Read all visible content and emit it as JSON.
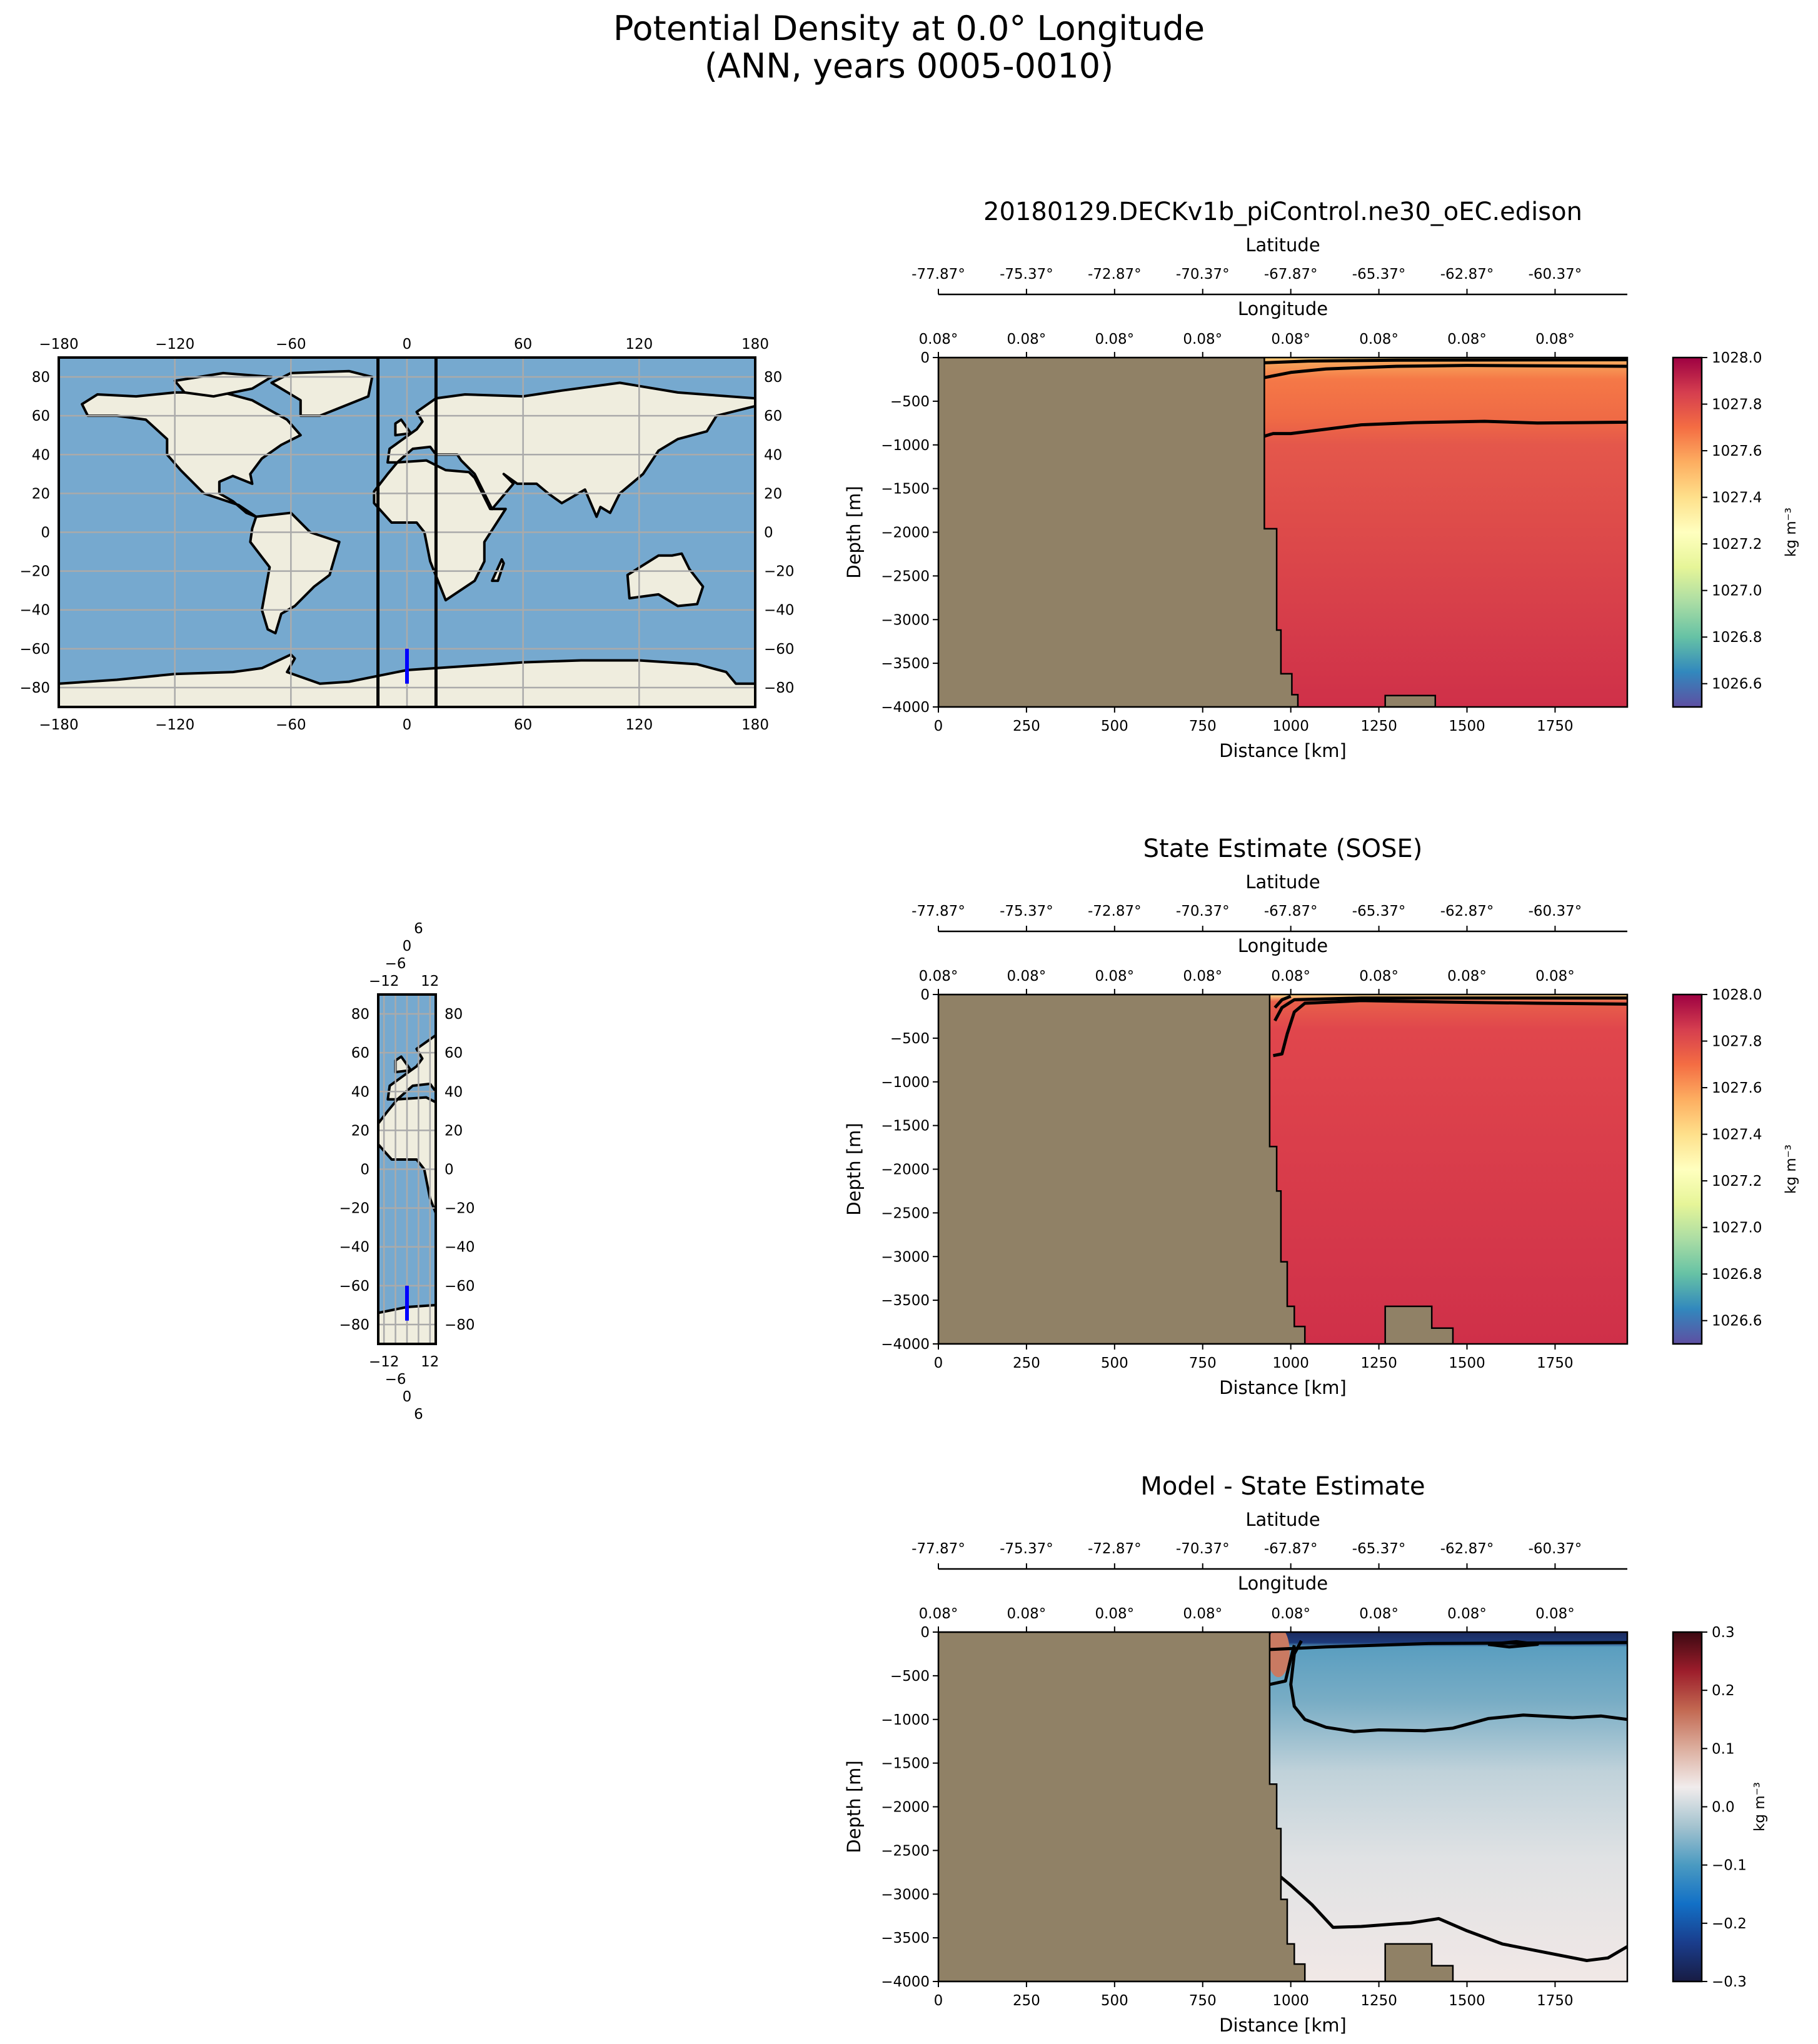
{
  "title": {
    "line1": "Potential Density at 0.0° Longitude",
    "line2": "(ANN, years 0005-0010)"
  },
  "chart_data": [
    {
      "type": "map",
      "name": "overview-map",
      "xlim": [
        -180,
        180
      ],
      "ylim": [
        -90,
        90
      ],
      "xticks": [
        "−180",
        "−120",
        "−60",
        "0",
        "60",
        "120",
        "180"
      ],
      "xtick_values": [
        -180,
        -120,
        -60,
        0,
        60,
        120,
        180
      ],
      "yticks": [
        "−80",
        "−60",
        "−40",
        "−20",
        "0",
        "20",
        "40",
        "60",
        "80"
      ],
      "ytick_values": [
        -80,
        -60,
        -40,
        -20,
        0,
        20,
        40,
        60,
        80
      ],
      "bounds_lon": [
        -15,
        15
      ],
      "transect": {
        "lon": 0,
        "lat": [
          -78,
          -60
        ],
        "color": "#0000ff"
      }
    },
    {
      "type": "map",
      "name": "inset-map",
      "xlim": [
        -15,
        15
      ],
      "ylim": [
        -90,
        90
      ],
      "xticks": [
        "−12",
        "−6",
        "0",
        "6",
        "12"
      ],
      "xtick_values": [
        -12,
        -6,
        0,
        6,
        12
      ],
      "yticks": [
        "−80",
        "−60",
        "−40",
        "−20",
        "0",
        "20",
        "40",
        "60",
        "80"
      ],
      "ytick_values": [
        -80,
        -60,
        -40,
        -20,
        0,
        20,
        40,
        60,
        80
      ],
      "transect": {
        "lon": 0,
        "lat": [
          -78,
          -60
        ],
        "color": "#0000ff"
      }
    },
    {
      "type": "heatmap",
      "name": "model-section",
      "title": "20180129.DECKv1b_piControl.ne30_oEC.edison",
      "xlabel": "Distance [km]",
      "ylabel": "Depth [m]",
      "xlim": [
        0,
        1955
      ],
      "ylim": [
        -4000,
        0
      ],
      "xticks": [
        0,
        250,
        500,
        750,
        1000,
        1250,
        1500,
        1750
      ],
      "yticks": [
        0,
        -500,
        -1000,
        -1500,
        -2000,
        -2500,
        -3000,
        -3500,
        -4000
      ],
      "lat_label": "Latitude",
      "lat_ticks": [
        "-77.87°",
        "-75.37°",
        "-72.87°",
        "-70.37°",
        "-67.87°",
        "-65.37°",
        "-62.87°",
        "-60.37°"
      ],
      "lon_label": "Longitude",
      "lon_ticks": [
        "0.08°",
        "0.08°",
        "0.08°",
        "0.08°",
        "0.08°",
        "0.08°",
        "0.08°",
        "0.08°"
      ],
      "colorbar": {
        "label": "kg m⁻³",
        "range": [
          1026.5,
          1028.0
        ],
        "ticks": [
          "1026.6",
          "1026.8",
          "1027.0",
          "1027.2",
          "1027.4",
          "1027.6",
          "1027.8",
          "1028.0"
        ],
        "tick_values": [
          1026.6,
          1026.8,
          1027.0,
          1027.2,
          1027.4,
          1027.6,
          1027.8,
          1028.0
        ],
        "cmap": "Spectral_r"
      },
      "field_stops": [
        {
          "depth": 0,
          "color": "#fdd57e"
        },
        {
          "depth": -60,
          "color": "#f7a35a"
        },
        {
          "depth": -250,
          "color": "#f57847"
        },
        {
          "depth": -700,
          "color": "#ef6a45"
        },
        {
          "depth": -1000,
          "color": "#e4574b"
        },
        {
          "depth": -4000,
          "color": "#cf3049"
        }
      ],
      "bathymetry": [
        [
          0,
          0
        ],
        [
          925,
          0
        ],
        [
          925,
          -1960
        ],
        [
          960,
          -1960
        ],
        [
          960,
          -3120
        ],
        [
          972,
          -3120
        ],
        [
          972,
          -3620
        ],
        [
          1003,
          -3620
        ],
        [
          1003,
          -3860
        ],
        [
          1020,
          -3860
        ],
        [
          1020,
          -4000
        ],
        [
          0,
          -4000
        ]
      ],
      "seamount": [
        [
          1268,
          -4000
        ],
        [
          1268,
          -3870
        ],
        [
          1410,
          -3870
        ],
        [
          1410,
          -4000
        ]
      ],
      "contours": [
        [
          [
            925,
            -900
          ],
          [
            950,
            -870
          ],
          [
            1000,
            -870
          ],
          [
            1100,
            -820
          ],
          [
            1200,
            -770
          ],
          [
            1350,
            -745
          ],
          [
            1550,
            -730
          ],
          [
            1700,
            -750
          ],
          [
            1955,
            -740
          ]
        ],
        [
          [
            925,
            -230
          ],
          [
            1000,
            -170
          ],
          [
            1100,
            -130
          ],
          [
            1300,
            -100
          ],
          [
            1500,
            -90
          ],
          [
            1955,
            -100
          ]
        ],
        [
          [
            925,
            -60
          ],
          [
            1050,
            -40
          ],
          [
            1300,
            -30
          ],
          [
            1955,
            -25
          ]
        ]
      ]
    },
    {
      "type": "heatmap",
      "name": "sose-section",
      "title": "State Estimate (SOSE)",
      "xlabel": "Distance [km]",
      "ylabel": "Depth [m]",
      "xlim": [
        0,
        1955
      ],
      "ylim": [
        -4000,
        0
      ],
      "xticks": [
        0,
        250,
        500,
        750,
        1000,
        1250,
        1500,
        1750
      ],
      "yticks": [
        0,
        -500,
        -1000,
        -1500,
        -2000,
        -2500,
        -3000,
        -3500,
        -4000
      ],
      "lat_label": "Latitude",
      "lat_ticks": [
        "-77.87°",
        "-75.37°",
        "-72.87°",
        "-70.37°",
        "-67.87°",
        "-65.37°",
        "-62.87°",
        "-60.37°"
      ],
      "lon_label": "Longitude",
      "lon_ticks": [
        "0.08°",
        "0.08°",
        "0.08°",
        "0.08°",
        "0.08°",
        "0.08°",
        "0.08°",
        "0.08°"
      ],
      "colorbar": {
        "label": "kg m⁻³",
        "range": [
          1026.5,
          1028.0
        ],
        "ticks": [
          "1026.6",
          "1026.8",
          "1027.0",
          "1027.2",
          "1027.4",
          "1027.6",
          "1027.8",
          "1028.0"
        ],
        "tick_values": [
          1026.6,
          1026.8,
          1027.0,
          1027.2,
          1027.4,
          1027.6,
          1027.8,
          1028.0
        ],
        "cmap": "Spectral_r"
      },
      "field_stops": [
        {
          "depth": 0,
          "color": "#fee08b"
        },
        {
          "depth": -80,
          "color": "#e8604a"
        },
        {
          "depth": -400,
          "color": "#e0464c"
        },
        {
          "depth": -4000,
          "color": "#cf3049"
        }
      ],
      "bathymetry": [
        [
          0,
          0
        ],
        [
          940,
          0
        ],
        [
          940,
          -1740
        ],
        [
          960,
          -1740
        ],
        [
          960,
          -2250
        ],
        [
          972,
          -2250
        ],
        [
          972,
          -3060
        ],
        [
          990,
          -3060
        ],
        [
          990,
          -3570
        ],
        [
          1010,
          -3570
        ],
        [
          1010,
          -3800
        ],
        [
          1040,
          -3800
        ],
        [
          1040,
          -4000
        ],
        [
          0,
          -4000
        ]
      ],
      "seamount": [
        [
          1268,
          -4000
        ],
        [
          1268,
          -3570
        ],
        [
          1400,
          -3570
        ],
        [
          1400,
          -3820
        ],
        [
          1460,
          -3820
        ],
        [
          1460,
          -4000
        ]
      ],
      "contours": [
        [
          [
            950,
            -700
          ],
          [
            975,
            -680
          ],
          [
            990,
            -450
          ],
          [
            1010,
            -200
          ],
          [
            1040,
            -100
          ],
          [
            1200,
            -70
          ],
          [
            1500,
            -90
          ],
          [
            1700,
            -100
          ],
          [
            1955,
            -110
          ]
        ],
        [
          [
            955,
            -300
          ],
          [
            975,
            -150
          ],
          [
            1010,
            -60
          ],
          [
            1200,
            -40
          ],
          [
            1955,
            -40
          ]
        ],
        [
          [
            955,
            -150
          ],
          [
            975,
            -60
          ],
          [
            1000,
            -20
          ]
        ]
      ]
    },
    {
      "type": "heatmap",
      "name": "difference-section",
      "title": "Model - State Estimate",
      "xlabel": "Distance [km]",
      "ylabel": "Depth [m]",
      "xlim": [
        0,
        1955
      ],
      "ylim": [
        -4000,
        0
      ],
      "xticks": [
        0,
        250,
        500,
        750,
        1000,
        1250,
        1500,
        1750
      ],
      "yticks": [
        0,
        -500,
        -1000,
        -1500,
        -2000,
        -2500,
        -3000,
        -3500,
        -4000
      ],
      "lat_label": "Latitude",
      "lat_ticks": [
        "-77.87°",
        "-75.37°",
        "-72.87°",
        "-70.37°",
        "-67.87°",
        "-65.37°",
        "-62.87°",
        "-60.37°"
      ],
      "lon_label": "Longitude",
      "lon_ticks": [
        "0.08°",
        "0.08°",
        "0.08°",
        "0.08°",
        "0.08°",
        "0.08°",
        "0.08°",
        "0.08°"
      ],
      "colorbar": {
        "label": "kg m⁻³",
        "range": [
          -0.3,
          0.3
        ],
        "ticks": [
          "−0.3",
          "−0.2",
          "−0.1",
          "0.0",
          "0.1",
          "0.2",
          "0.3"
        ],
        "tick_values": [
          -0.3,
          -0.2,
          -0.1,
          0.0,
          0.1,
          0.2,
          0.3
        ],
        "cmap": "balance"
      },
      "field_stops": [
        {
          "depth": 0,
          "color": "#1c2a5e"
        },
        {
          "depth": -120,
          "color": "#1d3a7a"
        },
        {
          "depth": -170,
          "color": "#5a9ec0"
        },
        {
          "depth": -800,
          "color": "#79adc5"
        },
        {
          "depth": -1600,
          "color": "#c0d2da"
        },
        {
          "depth": -2600,
          "color": "#e0e2e4"
        },
        {
          "depth": -4000,
          "color": "#f1e8e6"
        }
      ],
      "bathymetry": [
        [
          0,
          0
        ],
        [
          940,
          0
        ],
        [
          940,
          -1740
        ],
        [
          960,
          -1740
        ],
        [
          960,
          -2250
        ],
        [
          972,
          -2250
        ],
        [
          972,
          -3060
        ],
        [
          990,
          -3060
        ],
        [
          990,
          -3570
        ],
        [
          1010,
          -3570
        ],
        [
          1010,
          -3800
        ],
        [
          1040,
          -3800
        ],
        [
          1040,
          -4000
        ],
        [
          0,
          -4000
        ]
      ],
      "seamount": [
        [
          1268,
          -4000
        ],
        [
          1268,
          -3570
        ],
        [
          1400,
          -3570
        ],
        [
          1400,
          -3820
        ],
        [
          1460,
          -3820
        ],
        [
          1460,
          -4000
        ]
      ],
      "contours": [
        [
          [
            1030,
            -100
          ],
          [
            1010,
            -250
          ],
          [
            1000,
            -600
          ],
          [
            1010,
            -850
          ],
          [
            1040,
            -1000
          ],
          [
            1100,
            -1090
          ],
          [
            1180,
            -1140
          ],
          [
            1250,
            -1120
          ],
          [
            1380,
            -1130
          ],
          [
            1460,
            -1100
          ],
          [
            1560,
            -990
          ],
          [
            1660,
            -950
          ],
          [
            1800,
            -980
          ],
          [
            1880,
            -960
          ],
          [
            1955,
            -1000
          ]
        ],
        [
          [
            950,
            -2730
          ],
          [
            1000,
            -2900
          ],
          [
            1060,
            -3120
          ],
          [
            1120,
            -3380
          ],
          [
            1200,
            -3370
          ],
          [
            1300,
            -3340
          ],
          [
            1340,
            -3330
          ],
          [
            1420,
            -3280
          ],
          [
            1500,
            -3420
          ],
          [
            1600,
            -3570
          ],
          [
            1700,
            -3650
          ],
          [
            1840,
            -3760
          ],
          [
            1900,
            -3730
          ],
          [
            1955,
            -3600
          ]
        ],
        [
          [
            940,
            -200
          ],
          [
            1100,
            -170
          ],
          [
            1400,
            -130
          ],
          [
            1955,
            -120
          ]
        ],
        [
          [
            940,
            -600
          ],
          [
            985,
            -560
          ],
          [
            1000,
            -300
          ],
          [
            1010,
            -150
          ]
        ],
        [
          [
            1560,
            -140
          ],
          [
            1620,
            -170
          ],
          [
            1700,
            -140
          ],
          [
            1640,
            -110
          ],
          [
            1560,
            -140
          ]
        ]
      ],
      "blobs": [
        {
          "distance": 965,
          "depth": -230,
          "color": "#c97a62"
        }
      ]
    }
  ]
}
